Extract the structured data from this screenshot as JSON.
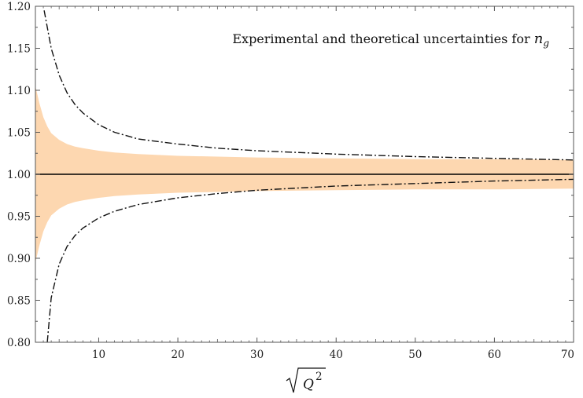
{
  "chart_data": {
    "type": "line",
    "title_main": "Experimental and theoretical uncertainties for ",
    "title_symbol": "n",
    "title_subscript": "g",
    "xlabel_symbol": "Q",
    "xlabel_power": "2",
    "ylabel": "",
    "xlim": [
      2,
      70
    ],
    "ylim": [
      0.8,
      1.2
    ],
    "x_ticks": [
      10,
      20,
      30,
      40,
      50,
      60,
      70
    ],
    "x_tick_labels": [
      "10",
      "20",
      "30",
      "40",
      "50",
      "60",
      "70"
    ],
    "y_ticks": [
      0.8,
      0.85,
      0.9,
      0.95,
      1.0,
      1.05,
      1.1,
      1.15,
      1.2
    ],
    "y_tick_labels": [
      "0.80",
      "0.85",
      "0.90",
      "0.95",
      "1.00",
      "1.05",
      "1.10",
      "1.15",
      "1.20"
    ],
    "colors": {
      "band": "#fdd7b0",
      "central": "#000000",
      "theory": "#111111",
      "frame": "#555555"
    },
    "series": [
      {
        "name": "experimental-band",
        "kind": "band",
        "x": [
          2,
          2.5,
          3,
          3.5,
          4,
          5,
          6,
          7,
          8,
          10,
          12,
          15,
          20,
          25,
          30,
          40,
          50,
          60,
          70
        ],
        "upper": [
          1.105,
          1.085,
          1.068,
          1.057,
          1.049,
          1.041,
          1.036,
          1.033,
          1.031,
          1.028,
          1.026,
          1.024,
          1.022,
          1.021,
          1.02,
          1.019,
          1.018,
          1.018,
          1.017
        ],
        "lower": [
          0.895,
          0.915,
          0.932,
          0.943,
          0.951,
          0.959,
          0.964,
          0.967,
          0.969,
          0.972,
          0.974,
          0.976,
          0.978,
          0.979,
          0.98,
          0.981,
          0.982,
          0.982,
          0.983
        ]
      },
      {
        "name": "central-value",
        "kind": "line",
        "x": [
          2,
          70
        ],
        "y": [
          1.0,
          1.0
        ]
      },
      {
        "name": "theory-upper",
        "kind": "dashdot",
        "x": [
          3.1,
          4,
          5,
          6,
          7,
          8,
          10,
          12,
          15,
          20,
          25,
          30,
          40,
          50,
          60,
          70
        ],
        "y": [
          1.195,
          1.15,
          1.118,
          1.097,
          1.083,
          1.073,
          1.059,
          1.05,
          1.042,
          1.036,
          1.031,
          1.028,
          1.024,
          1.021,
          1.019,
          1.017
        ]
      },
      {
        "name": "theory-lower",
        "kind": "dashdot",
        "x": [
          3.5,
          4,
          5,
          6,
          7,
          8,
          10,
          12,
          15,
          20,
          25,
          30,
          40,
          50,
          60,
          70
        ],
        "y": [
          0.8,
          0.853,
          0.893,
          0.914,
          0.927,
          0.936,
          0.948,
          0.956,
          0.964,
          0.972,
          0.977,
          0.981,
          0.986,
          0.989,
          0.992,
          0.994
        ]
      }
    ]
  }
}
